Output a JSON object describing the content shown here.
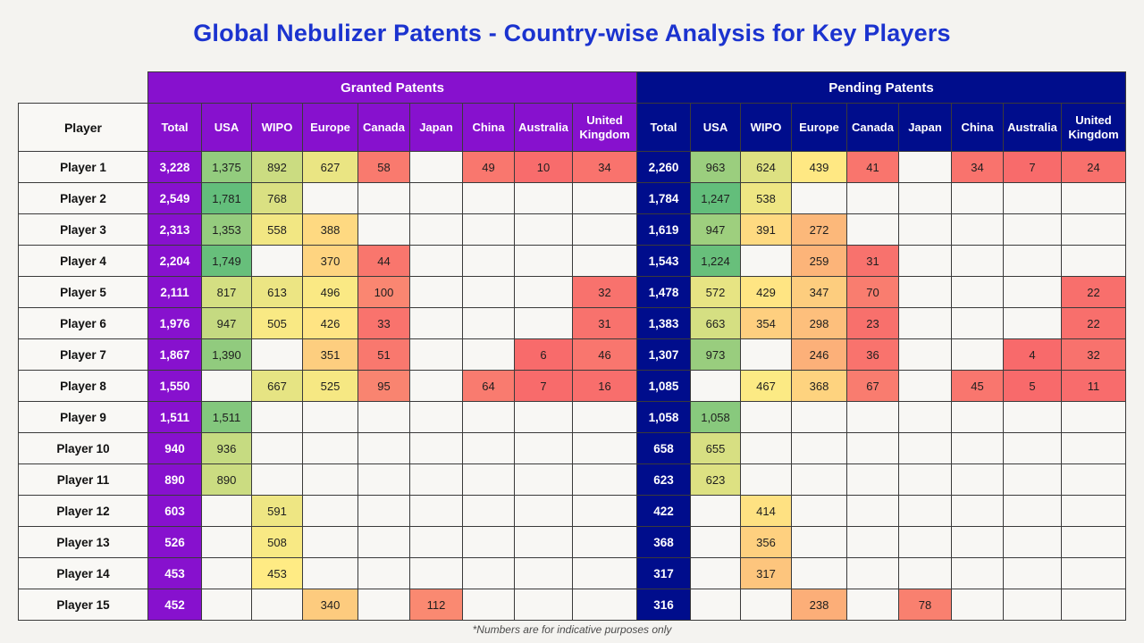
{
  "title": "Global Nebulizer Patents - Country-wise Analysis for Key Players",
  "footnote": "*Numbers are for indicative purposes only",
  "colors": {
    "title": "#1B33CF",
    "granted": "#8711CE",
    "pending": "#000D8C",
    "grid_border": "#3a3a3a",
    "page_background": "#F4F3F0"
  },
  "heatmap": {
    "low_color": "#F8696B",
    "mid_color": "#FFEB84",
    "high_color": "#63BE7B",
    "min": 0,
    "midpoint": 450,
    "granted_max": 1781,
    "pending_max": 1247
  },
  "chart_data": {
    "type": "heatmap",
    "title": "Global Nebulizer Patents - Country-wise Analysis for Key Players",
    "player_header": "Player",
    "column_groups": [
      "Granted Patents",
      "Pending Patents"
    ],
    "columns": [
      "Total",
      "USA",
      "WIPO",
      "Europe",
      "Canada",
      "Japan",
      "China",
      "Australia",
      "United Kingdom"
    ],
    "players": [
      "Player 1",
      "Player 2",
      "Player 3",
      "Player 4",
      "Player 5",
      "Player 6",
      "Player 7",
      "Player 8",
      "Player 9",
      "Player 10",
      "Player 11",
      "Player 12",
      "Player 13",
      "Player 14",
      "Player 15"
    ],
    "granted": [
      [
        3228,
        1375,
        892,
        627,
        58,
        null,
        49,
        10,
        34
      ],
      [
        2549,
        1781,
        768,
        null,
        null,
        null,
        null,
        null,
        null
      ],
      [
        2313,
        1353,
        558,
        388,
        null,
        null,
        null,
        null,
        null
      ],
      [
        2204,
        1749,
        null,
        370,
        44,
        null,
        null,
        null,
        null
      ],
      [
        2111,
        817,
        613,
        496,
        100,
        null,
        null,
        null,
        32
      ],
      [
        1976,
        947,
        505,
        426,
        33,
        null,
        null,
        null,
        31
      ],
      [
        1867,
        1390,
        null,
        351,
        51,
        null,
        null,
        6,
        46
      ],
      [
        1550,
        null,
        667,
        525,
        95,
        null,
        64,
        7,
        16
      ],
      [
        1511,
        1511,
        null,
        null,
        null,
        null,
        null,
        null,
        null
      ],
      [
        940,
        936,
        null,
        null,
        null,
        null,
        null,
        null,
        null
      ],
      [
        890,
        890,
        null,
        null,
        null,
        null,
        null,
        null,
        null
      ],
      [
        603,
        null,
        591,
        null,
        null,
        null,
        null,
        null,
        null
      ],
      [
        526,
        null,
        508,
        null,
        null,
        null,
        null,
        null,
        null
      ],
      [
        453,
        null,
        453,
        null,
        null,
        null,
        null,
        null,
        null
      ],
      [
        452,
        null,
        null,
        340,
        null,
        112,
        null,
        null,
        null
      ]
    ],
    "pending": [
      [
        2260,
        963,
        624,
        439,
        41,
        null,
        34,
        7,
        24
      ],
      [
        1784,
        1247,
        538,
        null,
        null,
        null,
        null,
        null,
        null
      ],
      [
        1619,
        947,
        391,
        272,
        null,
        null,
        null,
        null,
        null
      ],
      [
        1543,
        1224,
        null,
        259,
        31,
        null,
        null,
        null,
        null
      ],
      [
        1478,
        572,
        429,
        347,
        70,
        null,
        null,
        null,
        22
      ],
      [
        1383,
        663,
        354,
        298,
        23,
        null,
        null,
        null,
        22
      ],
      [
        1307,
        973,
        null,
        246,
        36,
        null,
        null,
        4,
        32
      ],
      [
        1085,
        null,
        467,
        368,
        67,
        null,
        45,
        5,
        11
      ],
      [
        1058,
        1058,
        null,
        null,
        null,
        null,
        null,
        null,
        null
      ],
      [
        658,
        655,
        null,
        null,
        null,
        null,
        null,
        null,
        null
      ],
      [
        623,
        623,
        null,
        null,
        null,
        null,
        null,
        null,
        null
      ],
      [
        422,
        null,
        414,
        null,
        null,
        null,
        null,
        null,
        null
      ],
      [
        368,
        null,
        356,
        null,
        null,
        null,
        null,
        null,
        null
      ],
      [
        317,
        null,
        317,
        null,
        null,
        null,
        null,
        null,
        null
      ],
      [
        316,
        null,
        null,
        238,
        null,
        78,
        null,
        null,
        null
      ]
    ]
  }
}
